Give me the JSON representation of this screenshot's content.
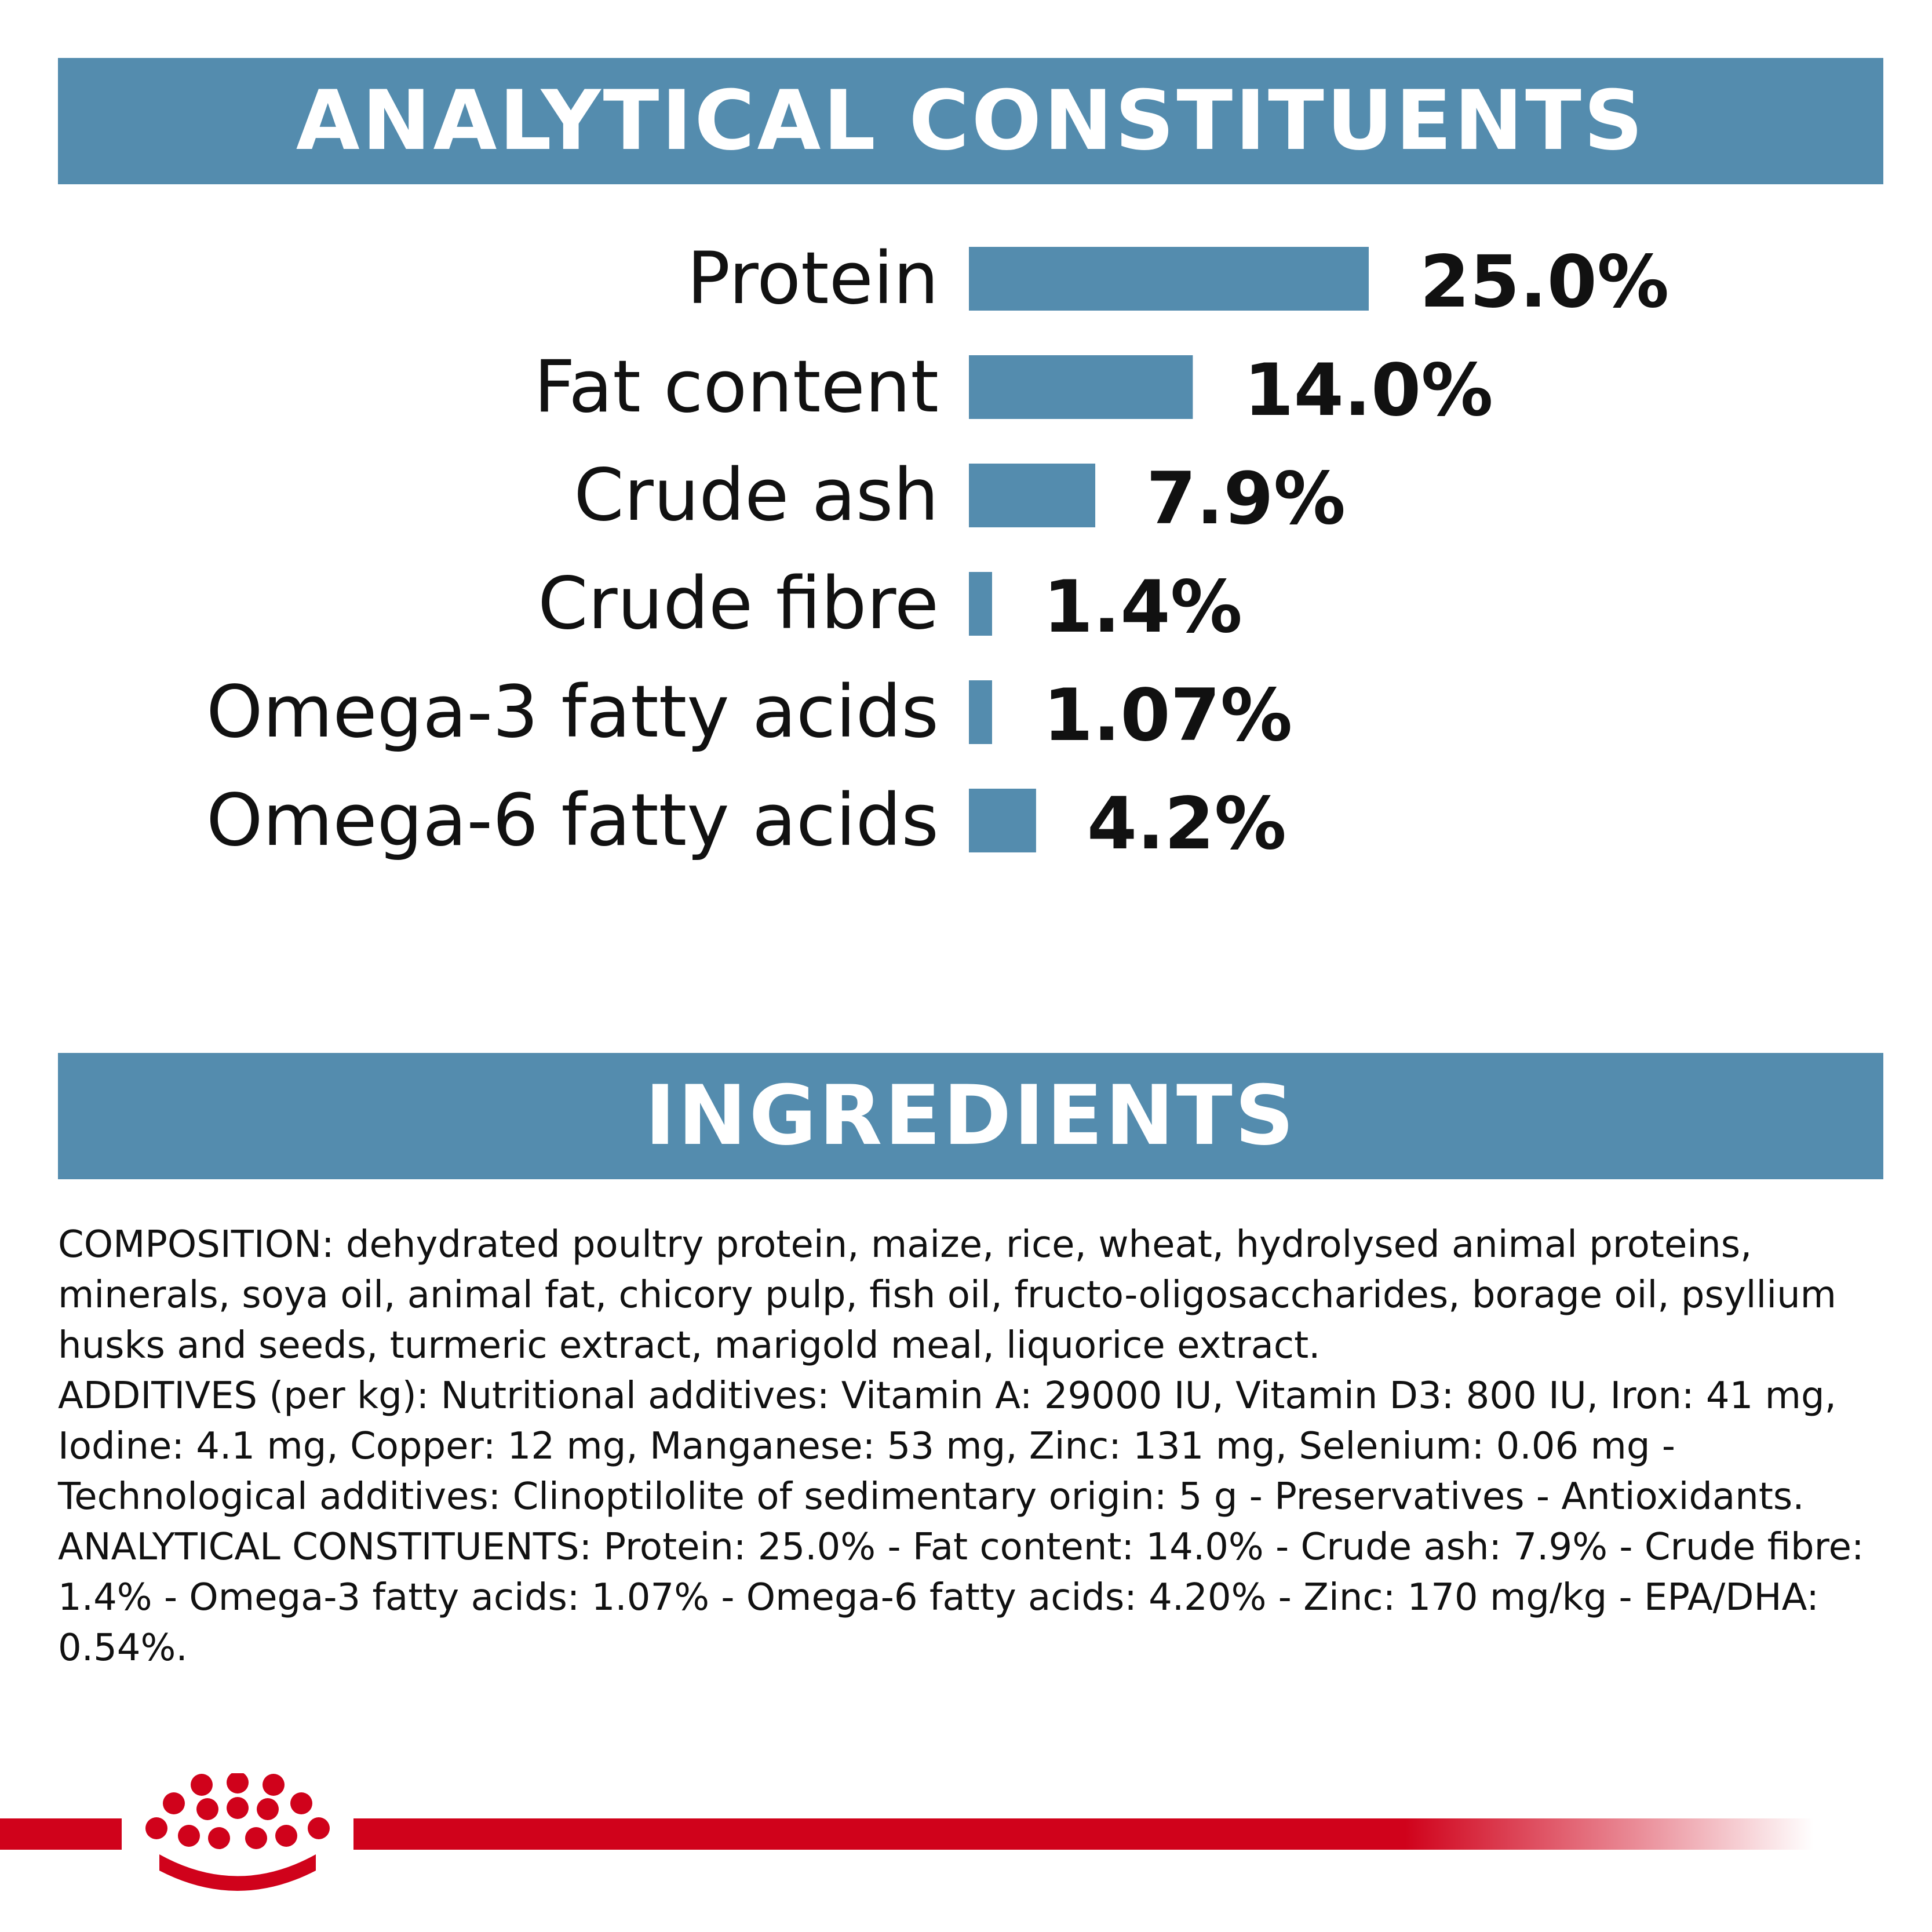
{
  "header_analytical": "ANALYTICAL CONSTITUENTS",
  "header_ingredients": "INGREDIENTS",
  "colors": {
    "banner": "#548cae",
    "bar": "#548cae",
    "brand_red": "#d0021b"
  },
  "chart_data": {
    "type": "bar",
    "orientation": "horizontal",
    "categories": [
      "Protein",
      "Fat content",
      "Crude ash",
      "Crude fibre",
      "Omega-3 fatty acids",
      "Omega-6 fatty acids"
    ],
    "values": [
      25.0,
      14.0,
      7.9,
      1.4,
      1.07,
      4.2
    ],
    "value_labels": [
      "25.0%",
      "14.0%",
      "7.9%",
      "1.4%",
      "1.07%",
      "4.2%"
    ],
    "unit": "%",
    "xlim": [
      0,
      25
    ],
    "grid": false
  },
  "ingredients": {
    "composition": "COMPOSITION: dehydrated poultry protein, maize, rice, wheat, hydrolysed animal proteins, minerals, soya oil, animal fat, chicory pulp, fish oil, fructo-oligosaccharides, borage oil, psyllium husks and seeds, turmeric extract, marigold meal, liquorice extract.",
    "additives": "ADDITIVES (per kg): Nutritional additives: Vitamin A: 29000 IU, Vitamin D3: 800 IU, Iron: 41 mg, Iodine: 4.1 mg, Copper: 12 mg, Manganese: 53 mg, Zinc: 131 mg, Selenium: 0.06 mg - Technological additives: Clinoptilolite of sedimentary origin: 5 g - Preservatives - Antioxidants.",
    "analytical": "ANALYTICAL CONSTITUENTS: Protein: 25.0% - Fat content: 14.0% - Crude ash: 7.9% - Crude fibre: 1.4% - Omega-3 fatty acids: 1.07% - Omega-6 fatty acids: 4.20% - Zinc: 170 mg/kg - EPA/DHA: 0.54%."
  },
  "logo_icon": "royal-canin-crown-icon"
}
